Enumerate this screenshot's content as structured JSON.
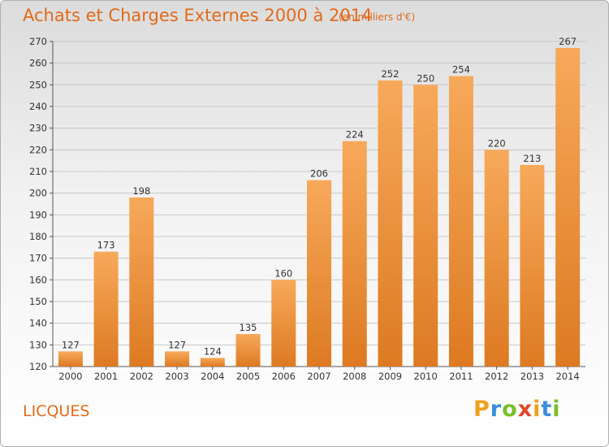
{
  "header": {
    "title": "Achats et Charges Externes 2000 à 2014",
    "subtitle": "(en milliers d'€)"
  },
  "footer": {
    "place": "LICQUES",
    "brand": "Proxiti"
  },
  "colors": {
    "accent": "#e06a1a",
    "bar_light": "#f7a95a",
    "bar_dark": "#dd7a22"
  },
  "chart_data": {
    "type": "bar",
    "title": "Achats et Charges Externes 2000 à 2014",
    "subtitle": "(en milliers d'€)",
    "categories": [
      "2000",
      "2001",
      "2002",
      "2003",
      "2004",
      "2005",
      "2006",
      "2007",
      "2008",
      "2009",
      "2010",
      "2011",
      "2012",
      "2013",
      "2014"
    ],
    "values": [
      127,
      173,
      198,
      127,
      124,
      135,
      160,
      206,
      224,
      252,
      250,
      254,
      220,
      213,
      267
    ],
    "ylim": [
      120,
      270
    ],
    "yticks": [
      120,
      130,
      140,
      150,
      160,
      170,
      180,
      190,
      200,
      210,
      220,
      230,
      240,
      250,
      260,
      270
    ],
    "grid": true,
    "legend": "none"
  }
}
